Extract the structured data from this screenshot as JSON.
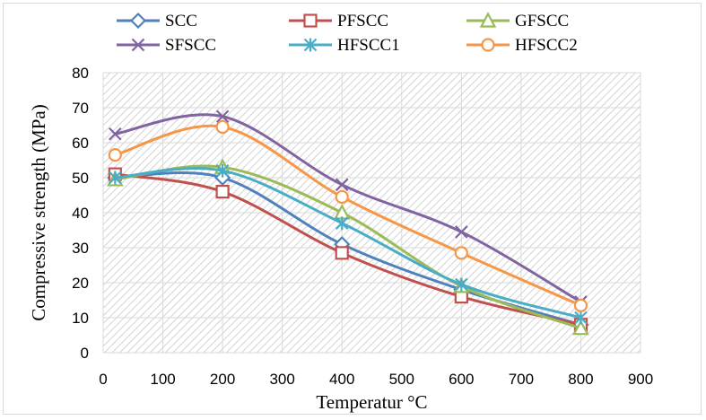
{
  "chart_data": {
    "type": "line",
    "xlabel": "Temperatur °C",
    "ylabel": "Compressive strength (MPa)",
    "xlim": [
      0,
      900
    ],
    "ylim": [
      0,
      80
    ],
    "x_ticks": [
      0,
      100,
      200,
      300,
      400,
      500,
      600,
      700,
      800,
      900
    ],
    "y_ticks": [
      0,
      10,
      20,
      30,
      40,
      50,
      60,
      70,
      80
    ],
    "grid": true,
    "plot_background": "diagonal hatch",
    "legend_position": "top",
    "x": [
      20,
      200,
      400,
      600,
      800
    ],
    "series": [
      {
        "name": "SCC",
        "values": [
          50,
          50,
          31,
          18,
          8
        ],
        "color": "#4f81bd",
        "marker": "diamond"
      },
      {
        "name": "PFSCC",
        "values": [
          51,
          46,
          28.5,
          16,
          8
        ],
        "color": "#c0504d",
        "marker": "square"
      },
      {
        "name": "GFSCC",
        "values": [
          49.5,
          53,
          40,
          19,
          7
        ],
        "color": "#9bbb59",
        "marker": "triangle"
      },
      {
        "name": "SFSCC",
        "values": [
          62.5,
          67.5,
          48,
          34.5,
          14.5
        ],
        "color": "#8064a2",
        "marker": "x"
      },
      {
        "name": "HFSCC1",
        "values": [
          50,
          52,
          37,
          19.5,
          10
        ],
        "color": "#4bacc6",
        "marker": "star"
      },
      {
        "name": "HFSCC2",
        "values": [
          56.5,
          64.5,
          44.5,
          28.5,
          13.5
        ],
        "color": "#f79646",
        "marker": "circle"
      }
    ]
  }
}
